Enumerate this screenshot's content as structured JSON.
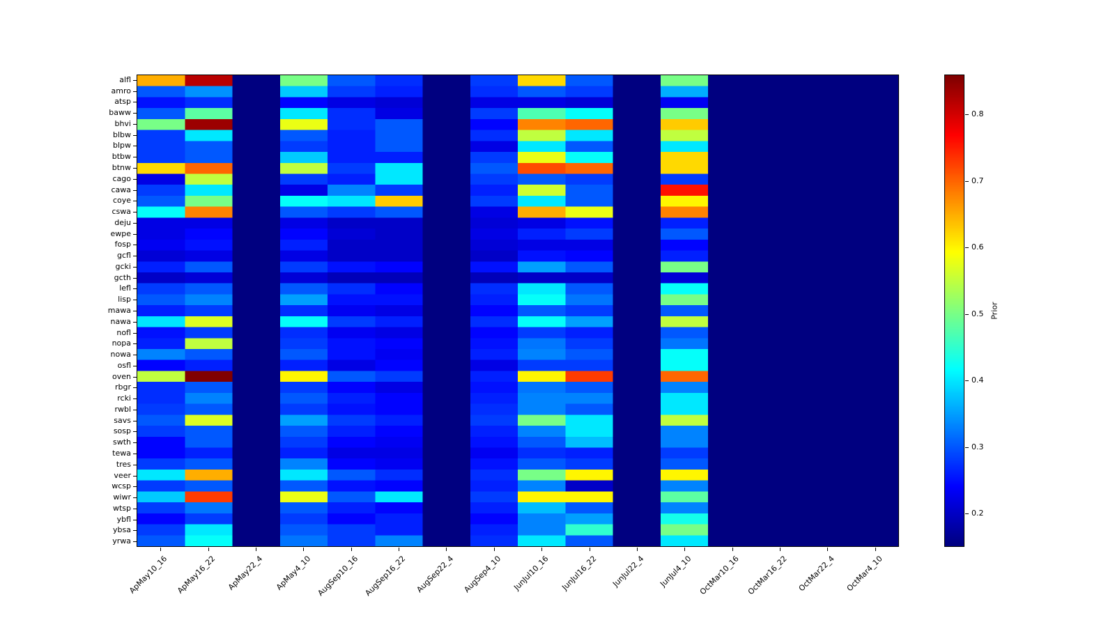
{
  "chart_data": {
    "type": "heatmap",
    "title": "",
    "xlabel": "",
    "ylabel": "",
    "colormap": "jet",
    "vmin": 0.15,
    "vmax": 0.86,
    "grid": false,
    "colorbar": {
      "label": "Prior",
      "position": "right",
      "ticks": [
        0.2,
        0.3,
        0.4,
        0.5,
        0.6,
        0.7,
        0.8
      ]
    },
    "x_categories": [
      "ApMay10_16",
      "ApMay16_22",
      "ApMay22_4",
      "ApMay4_10",
      "AugSep10_16",
      "AugSep16_22",
      "AugSep22_4",
      "AugSep4_10",
      "JunJul10_16",
      "JunJul16_22",
      "JunJul22_4",
      "JunJul4_10",
      "OctMar10_16",
      "OctMar16_22",
      "OctMar22_4",
      "OctMar4_10"
    ],
    "y_categories": [
      "alfl",
      "amro",
      "atsp",
      "baww",
      "bhvi",
      "blbw",
      "blpw",
      "btbw",
      "btnw",
      "cago",
      "cawa",
      "coye",
      "cswa",
      "deju",
      "ewpe",
      "fosp",
      "gcfl",
      "gcki",
      "gcth",
      "lefl",
      "lisp",
      "mawa",
      "nawa",
      "nofl",
      "nopa",
      "nowa",
      "osfl",
      "oven",
      "rbgr",
      "rcki",
      "rwbl",
      "savs",
      "sosp",
      "swth",
      "tewa",
      "tres",
      "veer",
      "wcsp",
      "wiwr",
      "wtsp",
      "ybfl",
      "ybsa",
      "yrwa"
    ],
    "values": [
      [
        0.65,
        0.82,
        0.15,
        0.5,
        0.3,
        0.27,
        0.15,
        0.28,
        0.62,
        0.3,
        0.15,
        0.5,
        0.15,
        0.15,
        0.15,
        0.15
      ],
      [
        0.3,
        0.34,
        0.15,
        0.38,
        0.28,
        0.26,
        0.15,
        0.27,
        0.3,
        0.28,
        0.15,
        0.36,
        0.15,
        0.15,
        0.15,
        0.15
      ],
      [
        0.25,
        0.27,
        0.15,
        0.24,
        0.22,
        0.21,
        0.15,
        0.22,
        0.22,
        0.21,
        0.15,
        0.23,
        0.15,
        0.15,
        0.15,
        0.15
      ],
      [
        0.3,
        0.48,
        0.15,
        0.4,
        0.27,
        0.22,
        0.15,
        0.28,
        0.47,
        0.42,
        0.15,
        0.5,
        0.15,
        0.15,
        0.15,
        0.15
      ],
      [
        0.5,
        0.84,
        0.15,
        0.58,
        0.27,
        0.3,
        0.15,
        0.24,
        0.68,
        0.7,
        0.15,
        0.63,
        0.15,
        0.15,
        0.15,
        0.15
      ],
      [
        0.28,
        0.4,
        0.15,
        0.3,
        0.26,
        0.3,
        0.15,
        0.27,
        0.55,
        0.4,
        0.15,
        0.55,
        0.15,
        0.15,
        0.15,
        0.15
      ],
      [
        0.28,
        0.3,
        0.15,
        0.28,
        0.26,
        0.3,
        0.15,
        0.22,
        0.4,
        0.3,
        0.15,
        0.4,
        0.15,
        0.15,
        0.15,
        0.15
      ],
      [
        0.28,
        0.3,
        0.15,
        0.38,
        0.26,
        0.26,
        0.15,
        0.28,
        0.58,
        0.42,
        0.15,
        0.62,
        0.15,
        0.15,
        0.15,
        0.15
      ],
      [
        0.62,
        0.7,
        0.15,
        0.55,
        0.28,
        0.4,
        0.15,
        0.3,
        0.72,
        0.7,
        0.15,
        0.62,
        0.15,
        0.15,
        0.15,
        0.15
      ],
      [
        0.22,
        0.55,
        0.15,
        0.28,
        0.26,
        0.4,
        0.15,
        0.28,
        0.3,
        0.28,
        0.15,
        0.28,
        0.15,
        0.15,
        0.15,
        0.15
      ],
      [
        0.28,
        0.4,
        0.15,
        0.22,
        0.33,
        0.28,
        0.15,
        0.26,
        0.56,
        0.3,
        0.15,
        0.76,
        0.15,
        0.15,
        0.15,
        0.15
      ],
      [
        0.3,
        0.5,
        0.15,
        0.42,
        0.4,
        0.63,
        0.15,
        0.28,
        0.4,
        0.3,
        0.15,
        0.6,
        0.15,
        0.15,
        0.15,
        0.15
      ],
      [
        0.42,
        0.68,
        0.15,
        0.3,
        0.28,
        0.3,
        0.15,
        0.22,
        0.65,
        0.58,
        0.15,
        0.68,
        0.15,
        0.15,
        0.15,
        0.15
      ],
      [
        0.22,
        0.22,
        0.15,
        0.22,
        0.2,
        0.2,
        0.15,
        0.21,
        0.22,
        0.25,
        0.15,
        0.26,
        0.15,
        0.15,
        0.15,
        0.15
      ],
      [
        0.22,
        0.24,
        0.15,
        0.24,
        0.21,
        0.2,
        0.15,
        0.22,
        0.26,
        0.28,
        0.15,
        0.3,
        0.15,
        0.15,
        0.15,
        0.15
      ],
      [
        0.23,
        0.25,
        0.15,
        0.26,
        0.2,
        0.2,
        0.15,
        0.21,
        0.22,
        0.22,
        0.15,
        0.24,
        0.15,
        0.15,
        0.15,
        0.15
      ],
      [
        0.21,
        0.22,
        0.15,
        0.22,
        0.2,
        0.2,
        0.15,
        0.2,
        0.25,
        0.24,
        0.15,
        0.26,
        0.15,
        0.15,
        0.15,
        0.15
      ],
      [
        0.26,
        0.3,
        0.15,
        0.28,
        0.25,
        0.24,
        0.15,
        0.25,
        0.35,
        0.3,
        0.15,
        0.5,
        0.15,
        0.15,
        0.15,
        0.15
      ],
      [
        0.2,
        0.21,
        0.15,
        0.21,
        0.19,
        0.19,
        0.15,
        0.19,
        0.2,
        0.2,
        0.15,
        0.21,
        0.15,
        0.15,
        0.15,
        0.15
      ],
      [
        0.28,
        0.3,
        0.15,
        0.3,
        0.27,
        0.24,
        0.15,
        0.27,
        0.4,
        0.3,
        0.15,
        0.42,
        0.15,
        0.15,
        0.15,
        0.15
      ],
      [
        0.3,
        0.33,
        0.15,
        0.35,
        0.25,
        0.25,
        0.15,
        0.26,
        0.42,
        0.32,
        0.15,
        0.5,
        0.15,
        0.15,
        0.15,
        0.15
      ],
      [
        0.26,
        0.28,
        0.15,
        0.27,
        0.23,
        0.22,
        0.15,
        0.24,
        0.3,
        0.28,
        0.15,
        0.3,
        0.15,
        0.15,
        0.15,
        0.15
      ],
      [
        0.4,
        0.57,
        0.15,
        0.42,
        0.28,
        0.26,
        0.15,
        0.27,
        0.42,
        0.35,
        0.15,
        0.55,
        0.15,
        0.15,
        0.15,
        0.15
      ],
      [
        0.25,
        0.28,
        0.15,
        0.27,
        0.23,
        0.22,
        0.15,
        0.24,
        0.28,
        0.26,
        0.15,
        0.3,
        0.15,
        0.15,
        0.15,
        0.15
      ],
      [
        0.26,
        0.55,
        0.15,
        0.28,
        0.25,
        0.24,
        0.15,
        0.25,
        0.32,
        0.28,
        0.15,
        0.32,
        0.15,
        0.15,
        0.15,
        0.15
      ],
      [
        0.33,
        0.3,
        0.15,
        0.3,
        0.25,
        0.23,
        0.15,
        0.26,
        0.33,
        0.3,
        0.15,
        0.42,
        0.15,
        0.15,
        0.15,
        0.15
      ],
      [
        0.24,
        0.26,
        0.15,
        0.26,
        0.22,
        0.24,
        0.15,
        0.22,
        0.28,
        0.28,
        0.15,
        0.42,
        0.15,
        0.15,
        0.15,
        0.15
      ],
      [
        0.55,
        0.86,
        0.15,
        0.6,
        0.3,
        0.28,
        0.15,
        0.26,
        0.6,
        0.73,
        0.15,
        0.7,
        0.15,
        0.15,
        0.15,
        0.15
      ],
      [
        0.27,
        0.3,
        0.15,
        0.28,
        0.24,
        0.22,
        0.15,
        0.25,
        0.32,
        0.3,
        0.15,
        0.33,
        0.15,
        0.15,
        0.15,
        0.15
      ],
      [
        0.27,
        0.33,
        0.15,
        0.3,
        0.26,
        0.24,
        0.15,
        0.26,
        0.33,
        0.33,
        0.15,
        0.4,
        0.15,
        0.15,
        0.15,
        0.15
      ],
      [
        0.28,
        0.3,
        0.15,
        0.28,
        0.25,
        0.24,
        0.15,
        0.27,
        0.33,
        0.3,
        0.15,
        0.4,
        0.15,
        0.15,
        0.15,
        0.15
      ],
      [
        0.3,
        0.57,
        0.15,
        0.35,
        0.28,
        0.26,
        0.15,
        0.28,
        0.5,
        0.4,
        0.15,
        0.55,
        0.15,
        0.15,
        0.15,
        0.15
      ],
      [
        0.28,
        0.3,
        0.15,
        0.3,
        0.26,
        0.24,
        0.15,
        0.26,
        0.33,
        0.4,
        0.15,
        0.33,
        0.15,
        0.15,
        0.15,
        0.15
      ],
      [
        0.24,
        0.3,
        0.15,
        0.28,
        0.24,
        0.23,
        0.15,
        0.25,
        0.3,
        0.37,
        0.15,
        0.33,
        0.15,
        0.15,
        0.15,
        0.15
      ],
      [
        0.24,
        0.26,
        0.15,
        0.26,
        0.22,
        0.22,
        0.15,
        0.23,
        0.27,
        0.26,
        0.15,
        0.28,
        0.15,
        0.15,
        0.15,
        0.15
      ],
      [
        0.28,
        0.3,
        0.15,
        0.33,
        0.24,
        0.23,
        0.15,
        0.25,
        0.3,
        0.28,
        0.15,
        0.3,
        0.15,
        0.15,
        0.15,
        0.15
      ],
      [
        0.4,
        0.65,
        0.15,
        0.4,
        0.3,
        0.27,
        0.15,
        0.27,
        0.5,
        0.6,
        0.15,
        0.6,
        0.15,
        0.15,
        0.15,
        0.15
      ],
      [
        0.28,
        0.3,
        0.15,
        0.3,
        0.25,
        0.24,
        0.15,
        0.26,
        0.33,
        0.2,
        0.15,
        0.33,
        0.15,
        0.15,
        0.15,
        0.15
      ],
      [
        0.38,
        0.73,
        0.15,
        0.58,
        0.3,
        0.4,
        0.15,
        0.28,
        0.6,
        0.6,
        0.15,
        0.48,
        0.15,
        0.15,
        0.15,
        0.15
      ],
      [
        0.28,
        0.32,
        0.15,
        0.3,
        0.26,
        0.24,
        0.15,
        0.26,
        0.37,
        0.3,
        0.15,
        0.33,
        0.15,
        0.15,
        0.15,
        0.15
      ],
      [
        0.24,
        0.28,
        0.15,
        0.28,
        0.24,
        0.26,
        0.15,
        0.24,
        0.33,
        0.35,
        0.15,
        0.43,
        0.15,
        0.15,
        0.15,
        0.15
      ],
      [
        0.28,
        0.4,
        0.15,
        0.3,
        0.28,
        0.26,
        0.15,
        0.26,
        0.33,
        0.45,
        0.15,
        0.5,
        0.15,
        0.15,
        0.15,
        0.15
      ],
      [
        0.3,
        0.42,
        0.15,
        0.32,
        0.28,
        0.33,
        0.15,
        0.27,
        0.4,
        0.3,
        0.15,
        0.4,
        0.15,
        0.15,
        0.15,
        0.15
      ]
    ]
  }
}
